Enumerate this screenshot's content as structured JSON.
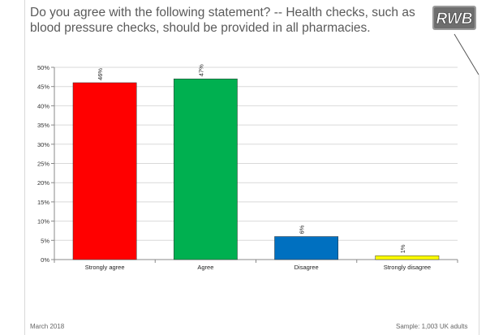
{
  "header": {
    "title": "Do you agree with the following statement? -- Health checks, such as blood pressure checks, should be provided in all pharmacies.",
    "logo_text": "RWB"
  },
  "footer": {
    "date": "March 2018",
    "sample": "Sample: 1,003 UK adults"
  },
  "chart_data": {
    "type": "bar",
    "categories": [
      "Strongly agree",
      "Agree",
      "Disagree",
      "Strongly disagree"
    ],
    "values": [
      46,
      47,
      6,
      1
    ],
    "data_labels": [
      "46%",
      "47%",
      "6%",
      "1%"
    ],
    "colors": [
      "#ff0000",
      "#00b050",
      "#0070c0",
      "#ffff00"
    ],
    "ylim": [
      0,
      50
    ],
    "yticks": [
      0,
      5,
      10,
      15,
      20,
      25,
      30,
      35,
      40,
      45,
      50
    ],
    "ytick_labels": [
      "0%",
      "5%",
      "10%",
      "15%",
      "20%",
      "25%",
      "30%",
      "35%",
      "40%",
      "45%",
      "50%"
    ],
    "xlabel": "",
    "ylabel": "",
    "grid": true,
    "legend": "none"
  }
}
